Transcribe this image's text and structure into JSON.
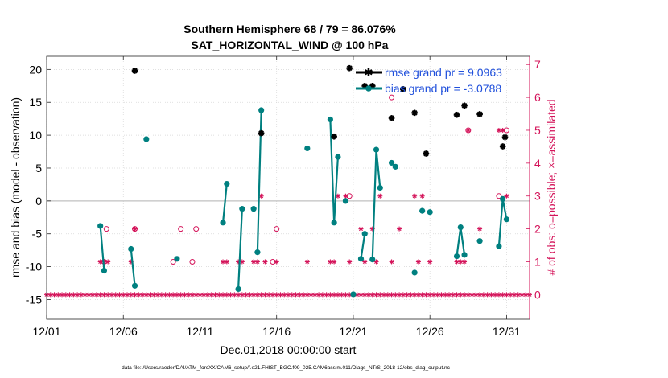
{
  "chart_data": {
    "type": "line",
    "title": "Southern Hemisphere 68 / 79 = 86.076%",
    "subtitle": "SAT_HORIZONTAL_WIND @ 100 hPa",
    "xlabel": "Dec.01,2018 00:00:00 start",
    "ylabel": "rmse and bias (model - observation)",
    "y2label": "# of obs: o=possible; ×=assimilated",
    "footer": "data file: /Users/raeder/DAI/ATM_forcXX/CAM6_setup/f.e21.FHIST_BGC.f09_025.CAM6assim.011/Diags_NTrS_2018-12/obs_diag_output.nc",
    "xlim": [
      1,
      32.5
    ],
    "ylim": [
      -18,
      22
    ],
    "y2lim": [
      -0.75,
      7.25
    ],
    "grid": true,
    "legend_position": "top-right",
    "xticks": [
      1,
      6,
      11,
      16,
      21,
      26,
      31
    ],
    "xtick_labels": [
      "12/01",
      "12/06",
      "12/11",
      "12/16",
      "12/21",
      "12/26",
      "12/31"
    ],
    "yticks": [
      -15,
      -10,
      -5,
      0,
      5,
      10,
      15,
      20
    ],
    "ytick_labels": [
      "-15",
      "-10",
      "-5",
      "0",
      "5",
      "10",
      "15",
      "20"
    ],
    "y2ticks": [
      0,
      1,
      2,
      3,
      4,
      5,
      6,
      7
    ],
    "y2tick_labels": [
      "0",
      "1",
      "2",
      "3",
      "4",
      "5",
      "6",
      "7"
    ],
    "colors": {
      "rmse": "#000000",
      "bias": "#008080",
      "obs": "#d4145a",
      "legend_text": "#1f4fdb",
      "zero_line": "#c0c0c0"
    },
    "series": [
      {
        "name": "rmse grand pr = 9.0963",
        "x": [
          6.75,
          15.0,
          19.75,
          20.75,
          21.75,
          22.25,
          23.5,
          24.25,
          25.0,
          25.75,
          27.75,
          28.25,
          29.25,
          30.75,
          30.9
        ],
        "y": [
          19.8,
          10.3,
          9.8,
          20.2,
          17.5,
          17.5,
          12.6,
          17.0,
          13.4,
          7.2,
          13.1,
          14.5,
          13.2,
          8.3,
          9.7
        ]
      },
      {
        "name": "bias grand pr = -3.0788",
        "segments": [
          {
            "x": [
              4.5,
              4.75
            ],
            "y": [
              -3.8,
              -10.6
            ]
          },
          {
            "x": [
              6.5,
              6.75
            ],
            "y": [
              -7.3,
              -12.9
            ]
          },
          {
            "x": [
              7.5
            ],
            "y": [
              9.4
            ]
          },
          {
            "x": [
              9.5
            ],
            "y": [
              -8.8
            ]
          },
          {
            "x": [
              12.5,
              12.75
            ],
            "y": [
              -3.3,
              2.6
            ]
          },
          {
            "x": [
              13.5,
              13.75
            ],
            "y": [
              -13.4,
              -1.2
            ]
          },
          {
            "x": [
              14.5
            ],
            "y": [
              -1.2
            ]
          },
          {
            "x": [
              14.75,
              15.0
            ],
            "y": [
              -7.8,
              13.8
            ]
          },
          {
            "x": [
              18.0
            ],
            "y": [
              8.0
            ]
          },
          {
            "x": [
              19.5,
              19.75,
              20.0
            ],
            "y": [
              12.4,
              -3.3,
              6.7
            ]
          },
          {
            "x": [
              20.5
            ],
            "y": [
              0.0
            ]
          },
          {
            "x": [
              21.0
            ],
            "y": [
              -14.2
            ]
          },
          {
            "x": [
              21.5,
              21.75
            ],
            "y": [
              -8.8,
              -5.0
            ]
          },
          {
            "x": [
              22.25,
              22.5,
              22.75
            ],
            "y": [
              -8.9,
              7.8,
              2.0
            ]
          },
          {
            "x": [
              23.5,
              23.75
            ],
            "y": [
              5.8,
              5.2
            ]
          },
          {
            "x": [
              25.0
            ],
            "y": [
              -10.9
            ]
          },
          {
            "x": [
              25.5
            ],
            "y": [
              -1.5
            ]
          },
          {
            "x": [
              26.0
            ],
            "y": [
              -1.7
            ]
          },
          {
            "x": [
              27.75,
              28.0,
              28.25
            ],
            "y": [
              -8.4,
              -4.0,
              -8.2
            ]
          },
          {
            "x": [
              29.25
            ],
            "y": [
              -6.1
            ]
          },
          {
            "x": [
              30.5,
              30.75,
              31.0
            ],
            "y": [
              -6.9,
              0.3,
              -2.8
            ]
          }
        ]
      }
    ],
    "obs_possible": {
      "x": [
        4.75,
        4.9,
        6.75,
        9.25,
        9.75,
        10.5,
        10.75,
        15.75,
        16.0,
        20.75,
        23.5,
        28.5,
        30.5,
        31.0
      ],
      "y": [
        1,
        2,
        2,
        1,
        2,
        1,
        2,
        1,
        2,
        3,
        6,
        5,
        3,
        5
      ]
    },
    "obs_assimilated": {
      "x": [
        4.5,
        4.75,
        5.0,
        6.5,
        6.75,
        12.5,
        12.75,
        13.5,
        13.75,
        14.5,
        14.75,
        15.0,
        15.25,
        16.0,
        18.0,
        19.5,
        19.75,
        20.0,
        20.5,
        20.75,
        21.5,
        21.75,
        22.25,
        22.5,
        22.75,
        23.5,
        24.0,
        25.0,
        25.25,
        25.5,
        26.0,
        27.75,
        28.0,
        28.25,
        28.5,
        29.25,
        30.5,
        30.75,
        31.0
      ],
      "y": [
        1,
        1,
        1,
        1,
        2,
        1,
        1,
        1,
        1,
        1,
        1,
        3,
        1,
        1,
        1,
        1,
        1,
        3,
        3,
        1,
        2,
        1,
        2,
        1,
        3,
        1,
        2,
        3,
        1,
        3,
        1,
        1,
        1,
        1,
        5,
        2,
        5,
        5,
        3
      ]
    }
  }
}
